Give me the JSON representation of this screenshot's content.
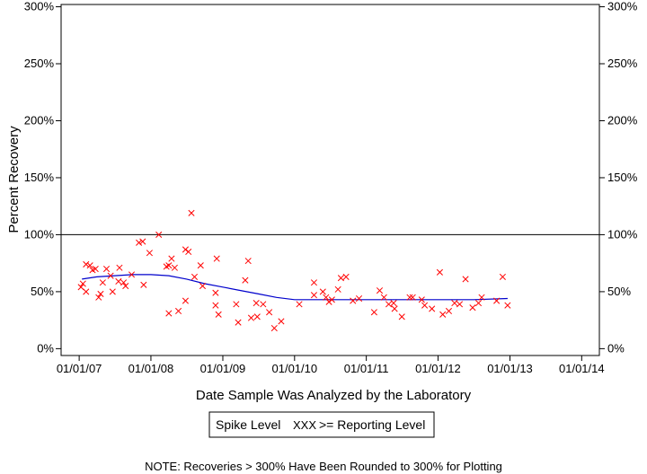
{
  "chart_data": {
    "type": "scatter",
    "xlabel": "Date Sample Was Analyzed by the Laboratory",
    "ylabel": "Percent Recovery",
    "x_ticks": [
      "01/01/07",
      "01/01/08",
      "01/01/09",
      "01/01/10",
      "01/01/11",
      "01/01/12",
      "01/01/13",
      "01/01/14"
    ],
    "y_ticks": [
      "0%",
      "50%",
      "100%",
      "150%",
      "200%",
      "250%",
      "300%"
    ],
    "xlim": [
      "2006-10-01",
      "2014-04-01"
    ],
    "ylim": [
      -6,
      302
    ],
    "reference_line": 100,
    "grid": false,
    "legend": {
      "placement": "bottom-center",
      "entries": [
        "Spike Level",
        ">= Reporting Level"
      ],
      "marker_text": "XXX"
    },
    "note": "NOTE: Recoveries > 300% Have Been Rounded to 300% for Plotting",
    "colors": {
      "points": "#ff0000",
      "trend": "#0000cc",
      "axes": "#000000"
    },
    "series": [
      {
        "name": ">= Reporting Level",
        "marker": "x",
        "points": [
          {
            "x": "2007-01-10",
            "y": 54
          },
          {
            "x": "2007-01-20",
            "y": 57
          },
          {
            "x": "2007-02-05",
            "y": 50
          },
          {
            "x": "2007-02-05",
            "y": 74
          },
          {
            "x": "2007-02-25",
            "y": 73
          },
          {
            "x": "2007-03-10",
            "y": 69
          },
          {
            "x": "2007-03-25",
            "y": 70
          },
          {
            "x": "2007-04-10",
            "y": 45
          },
          {
            "x": "2007-04-20",
            "y": 48
          },
          {
            "x": "2007-05-01",
            "y": 58
          },
          {
            "x": "2007-05-20",
            "y": 70
          },
          {
            "x": "2007-06-10",
            "y": 64
          },
          {
            "x": "2007-06-20",
            "y": 50
          },
          {
            "x": "2007-07-20",
            "y": 59
          },
          {
            "x": "2007-07-25",
            "y": 71
          },
          {
            "x": "2007-08-15",
            "y": 58
          },
          {
            "x": "2007-08-25",
            "y": 55
          },
          {
            "x": "2007-09-25",
            "y": 65
          },
          {
            "x": "2007-11-01",
            "y": 93
          },
          {
            "x": "2007-11-20",
            "y": 94
          },
          {
            "x": "2007-11-25",
            "y": 56
          },
          {
            "x": "2007-12-25",
            "y": 84
          },
          {
            "x": "2008-02-10",
            "y": 100
          },
          {
            "x": "2008-03-20",
            "y": 72
          },
          {
            "x": "2008-04-01",
            "y": 73
          },
          {
            "x": "2008-04-01",
            "y": 31
          },
          {
            "x": "2008-04-15",
            "y": 79
          },
          {
            "x": "2008-05-01",
            "y": 71
          },
          {
            "x": "2008-05-20",
            "y": 33
          },
          {
            "x": "2008-06-25",
            "y": 87
          },
          {
            "x": "2008-06-25",
            "y": 42
          },
          {
            "x": "2008-07-10",
            "y": 85
          },
          {
            "x": "2008-07-25",
            "y": 119
          },
          {
            "x": "2008-08-10",
            "y": 63
          },
          {
            "x": "2008-09-10",
            "y": 73
          },
          {
            "x": "2008-09-20",
            "y": 55
          },
          {
            "x": "2008-11-25",
            "y": 49
          },
          {
            "x": "2008-11-25",
            "y": 38
          },
          {
            "x": "2008-12-01",
            "y": 79
          },
          {
            "x": "2008-12-10",
            "y": 30
          },
          {
            "x": "2009-03-10",
            "y": 39
          },
          {
            "x": "2009-03-20",
            "y": 23
          },
          {
            "x": "2009-04-25",
            "y": 60
          },
          {
            "x": "2009-05-10",
            "y": 77
          },
          {
            "x": "2009-05-25",
            "y": 27
          },
          {
            "x": "2009-06-20",
            "y": 40
          },
          {
            "x": "2009-06-25",
            "y": 28
          },
          {
            "x": "2009-07-25",
            "y": 39
          },
          {
            "x": "2009-08-25",
            "y": 32
          },
          {
            "x": "2009-09-20",
            "y": 18
          },
          {
            "x": "2009-10-25",
            "y": 24
          },
          {
            "x": "2010-01-25",
            "y": 39
          },
          {
            "x": "2010-04-10",
            "y": 58
          },
          {
            "x": "2010-04-10",
            "y": 47
          },
          {
            "x": "2010-05-25",
            "y": 50
          },
          {
            "x": "2010-06-10",
            "y": 45
          },
          {
            "x": "2010-06-25",
            "y": 41
          },
          {
            "x": "2010-07-10",
            "y": 43
          },
          {
            "x": "2010-08-10",
            "y": 52
          },
          {
            "x": "2010-08-25",
            "y": 62
          },
          {
            "x": "2010-09-20",
            "y": 63
          },
          {
            "x": "2010-10-25",
            "y": 42
          },
          {
            "x": "2010-11-25",
            "y": 44
          },
          {
            "x": "2011-02-10",
            "y": 32
          },
          {
            "x": "2011-03-10",
            "y": 51
          },
          {
            "x": "2011-04-01",
            "y": 45
          },
          {
            "x": "2011-04-25",
            "y": 39
          },
          {
            "x": "2011-05-20",
            "y": 40
          },
          {
            "x": "2011-05-25",
            "y": 35
          },
          {
            "x": "2011-07-01",
            "y": 28
          },
          {
            "x": "2011-08-10",
            "y": 45
          },
          {
            "x": "2011-08-25",
            "y": 45
          },
          {
            "x": "2011-10-10",
            "y": 43
          },
          {
            "x": "2011-10-25",
            "y": 38
          },
          {
            "x": "2011-12-01",
            "y": 35
          },
          {
            "x": "2012-01-10",
            "y": 67
          },
          {
            "x": "2012-01-25",
            "y": 30
          },
          {
            "x": "2012-02-25",
            "y": 33
          },
          {
            "x": "2012-03-25",
            "y": 40
          },
          {
            "x": "2012-04-20",
            "y": 39
          },
          {
            "x": "2012-05-20",
            "y": 61
          },
          {
            "x": "2012-06-25",
            "y": 36
          },
          {
            "x": "2012-07-25",
            "y": 40
          },
          {
            "x": "2012-08-10",
            "y": 45
          },
          {
            "x": "2012-10-25",
            "y": 42
          },
          {
            "x": "2012-11-25",
            "y": 63
          },
          {
            "x": "2012-12-20",
            "y": 38
          }
        ]
      },
      {
        "role": "trend",
        "marker": "line",
        "points": [
          {
            "x": "2007-01-15",
            "y": 61
          },
          {
            "x": "2007-04-01",
            "y": 63
          },
          {
            "x": "2007-07-01",
            "y": 64
          },
          {
            "x": "2007-10-01",
            "y": 65
          },
          {
            "x": "2008-01-01",
            "y": 65
          },
          {
            "x": "2008-04-01",
            "y": 64
          },
          {
            "x": "2008-07-01",
            "y": 61
          },
          {
            "x": "2008-10-01",
            "y": 57
          },
          {
            "x": "2009-01-01",
            "y": 54
          },
          {
            "x": "2009-04-01",
            "y": 51
          },
          {
            "x": "2009-07-01",
            "y": 48
          },
          {
            "x": "2009-10-01",
            "y": 45
          },
          {
            "x": "2010-01-01",
            "y": 43
          },
          {
            "x": "2010-07-01",
            "y": 43
          },
          {
            "x": "2011-01-01",
            "y": 43
          },
          {
            "x": "2011-07-01",
            "y": 43
          },
          {
            "x": "2012-01-01",
            "y": 43
          },
          {
            "x": "2012-07-01",
            "y": 43
          },
          {
            "x": "2012-12-20",
            "y": 44
          }
        ]
      }
    ]
  }
}
